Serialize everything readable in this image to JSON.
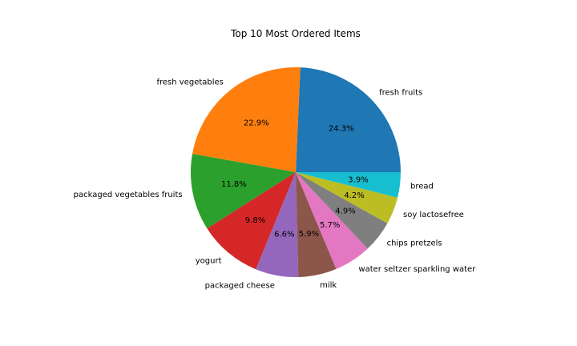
{
  "chart_data": {
    "type": "pie",
    "title": "Top 10 Most Ordered Items",
    "categories": [
      "fresh fruits",
      "fresh vegetables",
      "packaged vegetables fruits",
      "yogurt",
      "packaged cheese",
      "milk",
      "water seltzer sparkling water",
      "chips pretzels",
      "soy lactosefree",
      "bread"
    ],
    "values": [
      24.3,
      22.9,
      11.8,
      9.8,
      6.6,
      5.9,
      5.7,
      4.9,
      4.2,
      3.9
    ],
    "percent_labels": [
      "24.3%",
      "22.9%",
      "11.8%",
      "9.8%",
      "6.6%",
      "5.9%",
      "5.7%",
      "4.9%",
      "4.2%",
      "3.9%"
    ],
    "colors": [
      "#1f77b4",
      "#ff7f0e",
      "#2ca02c",
      "#d62728",
      "#9467bd",
      "#8c564b",
      "#e377c2",
      "#7f7f7f",
      "#bcbd22",
      "#17becf"
    ],
    "start_angle_deg": 0,
    "direction": "counterclockwise",
    "legend": "none"
  }
}
